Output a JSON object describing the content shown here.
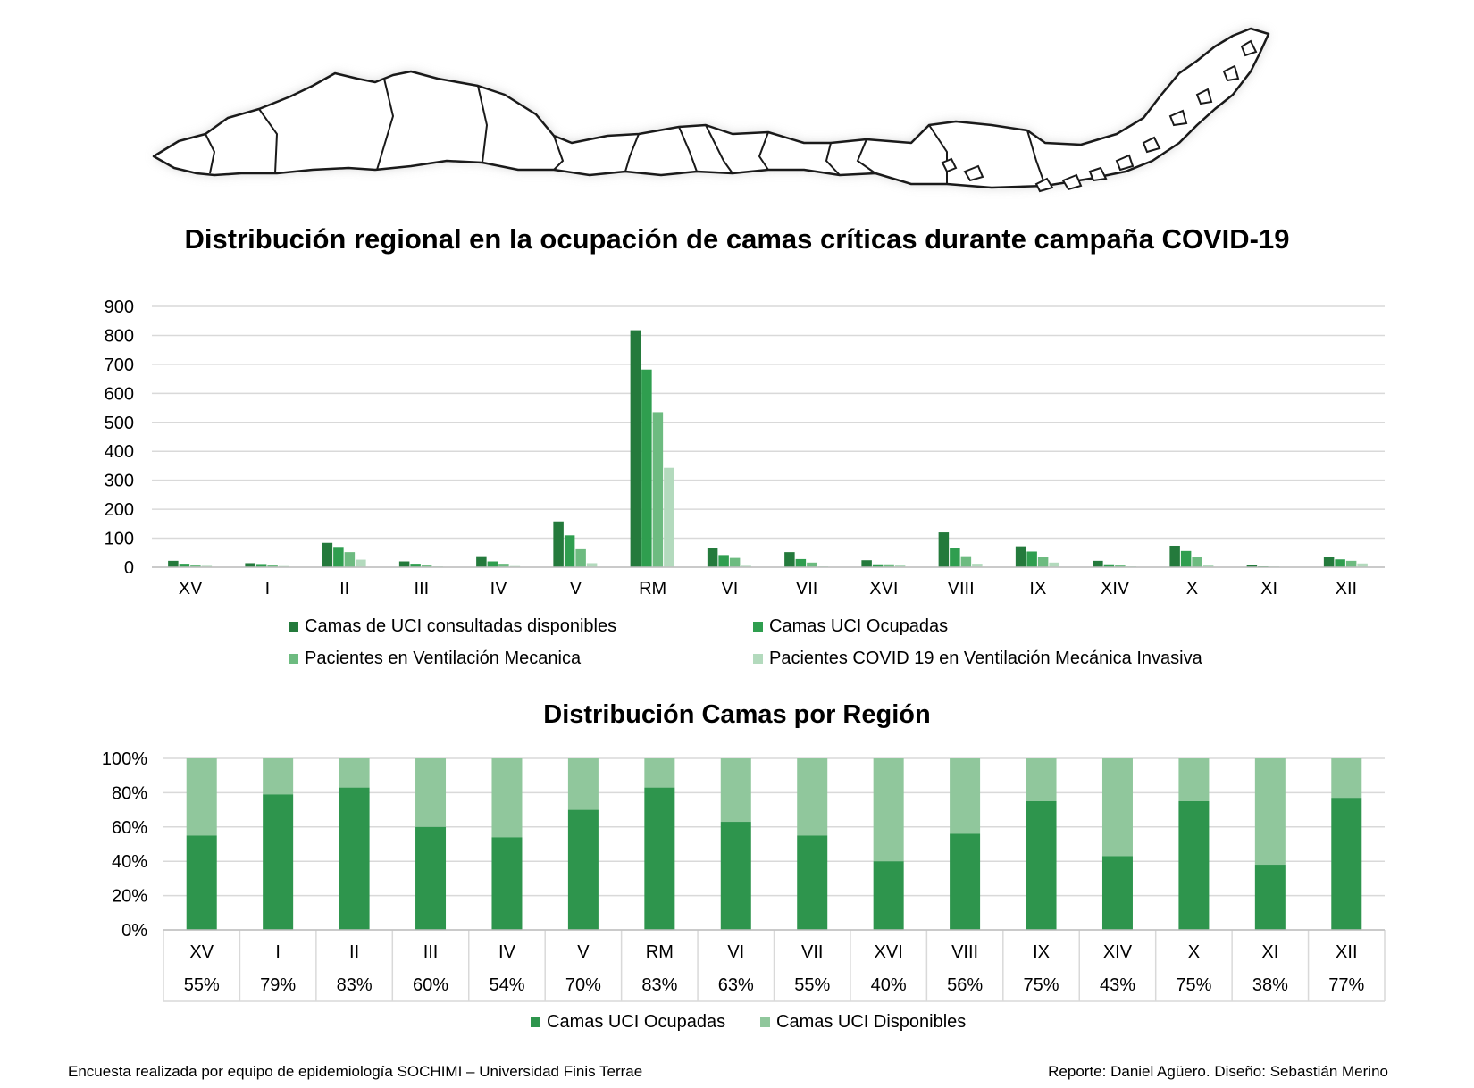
{
  "title": "Distribución regional en la ocupación de camas críticas durante campaña COVID-19",
  "title2": "Distribución Camas por Región",
  "footer_left": "Encuesta realizada por equipo de epidemiología SOCHIMI – Universidad Finis Terrae",
  "footer_right": "Reporte: Daniel Agüero. Diseño: Sebastián Merino",
  "chart_data": [
    {
      "type": "bar",
      "categories": [
        "XV",
        "I",
        "II",
        "III",
        "IV",
        "V",
        "RM",
        "VI",
        "VII",
        "XVI",
        "VIII",
        "IX",
        "XIV",
        "X",
        "XI",
        "XII"
      ],
      "ylim": [
        0,
        900
      ],
      "yticks": [
        "0",
        "100",
        "200",
        "300",
        "400",
        "500",
        "600",
        "700",
        "800",
        "900"
      ],
      "grid": true,
      "legend_position": "bottom",
      "series": [
        {
          "name": "Camas de UCI consultadas disponibles",
          "color": "#247a3c",
          "values": [
            22,
            14,
            84,
            20,
            38,
            158,
            818,
            67,
            52,
            24,
            120,
            72,
            22,
            74,
            8,
            35
          ]
        },
        {
          "name": "Camas UCI Ocupadas",
          "color": "#2f9e4f",
          "values": [
            12,
            11,
            70,
            12,
            20,
            110,
            682,
            42,
            28,
            10,
            67,
            54,
            10,
            56,
            3,
            27
          ]
        },
        {
          "name": "Pacientes en Ventilación Mecanica",
          "color": "#6dbb80",
          "values": [
            8,
            8,
            52,
            6,
            12,
            62,
            535,
            32,
            16,
            10,
            38,
            35,
            6,
            35,
            2,
            22
          ]
        },
        {
          "name": "Pacientes COVID 19 en Ventilación Mecánica Invasiva",
          "color": "#b3dabd",
          "values": [
            5,
            4,
            26,
            3,
            4,
            14,
            343,
            5,
            3,
            7,
            12,
            16,
            3,
            8,
            1,
            13
          ]
        }
      ]
    },
    {
      "type": "bar",
      "stacked": "percent",
      "categories": [
        "XV",
        "I",
        "II",
        "III",
        "IV",
        "V",
        "RM",
        "VI",
        "VII",
        "XVI",
        "VIII",
        "IX",
        "XIV",
        "X",
        "XI",
        "XII"
      ],
      "percent_labels": [
        "55%",
        "79%",
        "83%",
        "60%",
        "54%",
        "70%",
        "83%",
        "63%",
        "55%",
        "40%",
        "56%",
        "75%",
        "43%",
        "75%",
        "38%",
        "77%"
      ],
      "ylim": [
        0,
        100
      ],
      "yticks": [
        "0%",
        "20%",
        "40%",
        "60%",
        "80%",
        "100%"
      ],
      "grid": true,
      "legend_position": "bottom",
      "series": [
        {
          "name": "Camas UCI Ocupadas",
          "color": "#2e954d",
          "values": [
            55,
            79,
            83,
            60,
            54,
            70,
            83,
            63,
            55,
            40,
            56,
            75,
            43,
            75,
            38,
            77
          ]
        },
        {
          "name": "Camas UCI Disponibles",
          "color": "#90c79c",
          "values": [
            45,
            21,
            17,
            40,
            46,
            30,
            17,
            37,
            45,
            60,
            44,
            25,
            57,
            25,
            62,
            23
          ]
        }
      ]
    }
  ],
  "map_icon": "chile-regions-map"
}
